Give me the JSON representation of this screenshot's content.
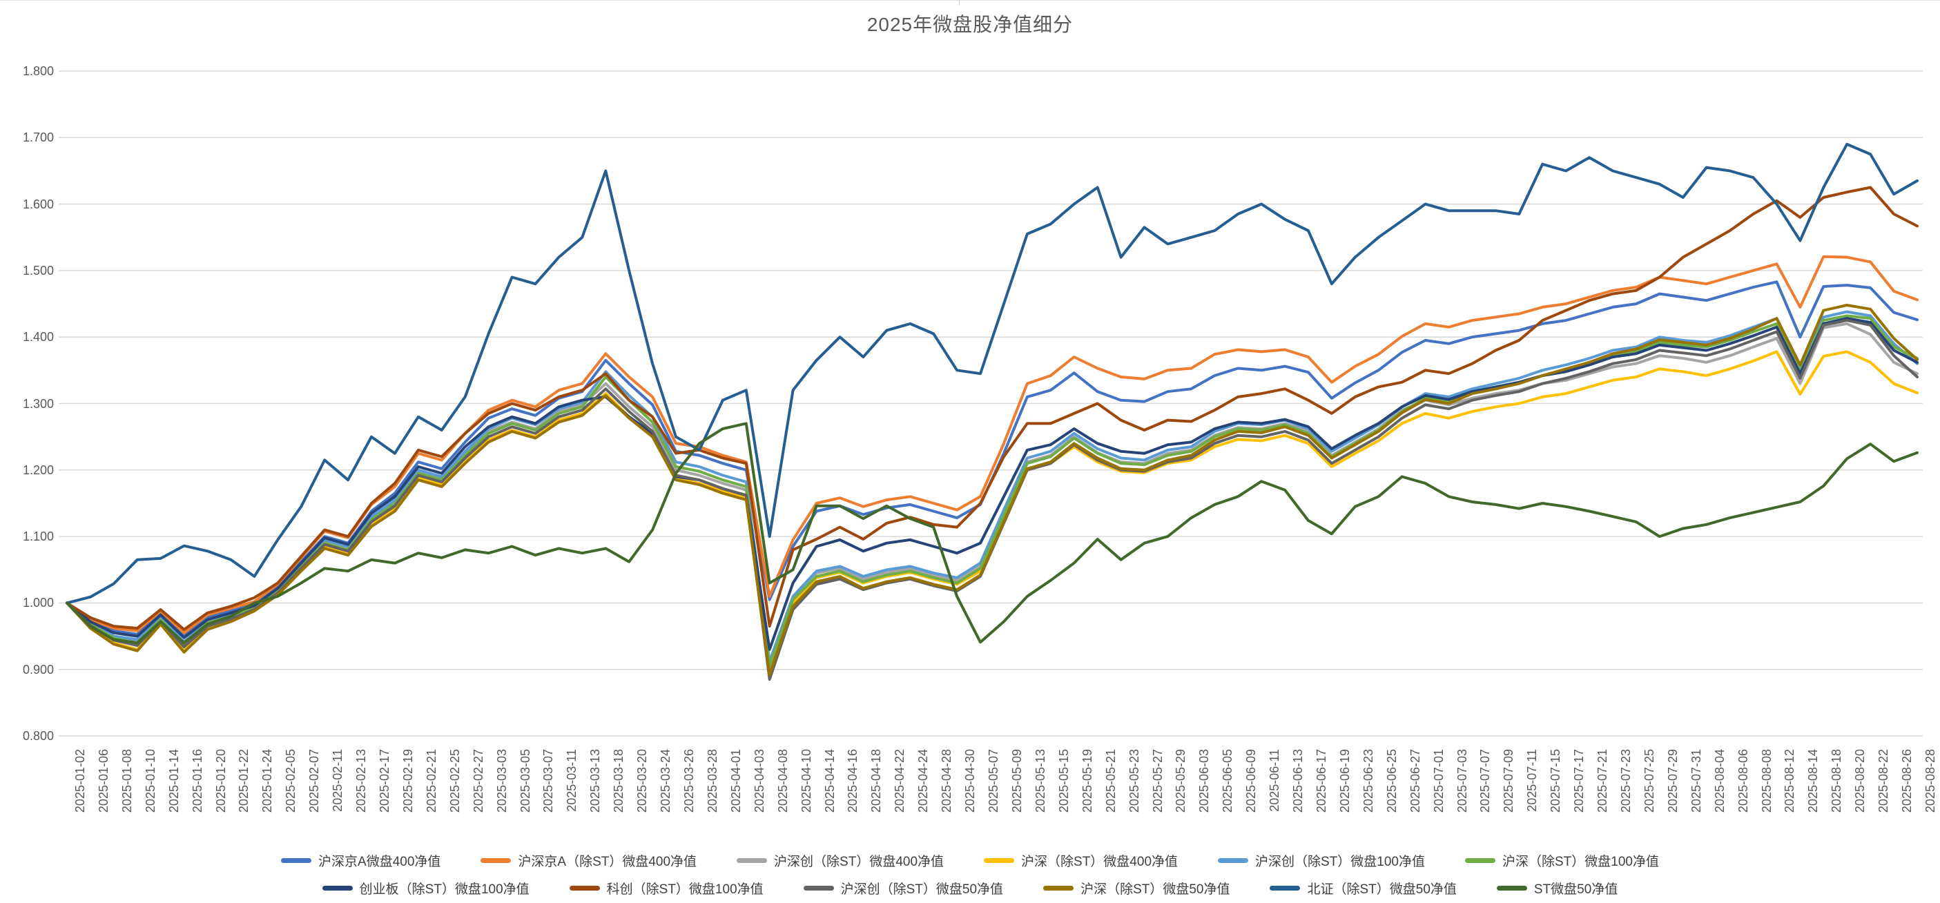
{
  "title": "2025年微盘股净值细分",
  "y_axis": {
    "tick_labels": [
      "1.800",
      "1.700",
      "1.600",
      "1.500",
      "1.400",
      "1.300",
      "1.200",
      "1.100",
      "1.000",
      "0.900",
      "0.800"
    ],
    "min": 0.8,
    "max": 1.8,
    "step": 0.1
  },
  "legend_rows": [
    [
      0,
      1,
      2,
      3,
      4,
      5
    ],
    [
      6,
      7,
      8,
      9,
      10,
      11
    ]
  ],
  "chart_data": {
    "type": "line",
    "title": "2025年微盘股净值细分",
    "xlabel": "",
    "ylabel": "",
    "ylim": [
      0.8,
      1.8
    ],
    "grid": "horizontal",
    "legend_position": "bottom",
    "x": [
      "2025-01-02",
      "2025-01-06",
      "2025-01-08",
      "2025-01-10",
      "2025-01-14",
      "2025-01-16",
      "2025-01-20",
      "2025-01-22",
      "2025-01-24",
      "2025-02-05",
      "2025-02-07",
      "2025-02-11",
      "2025-02-13",
      "2025-02-17",
      "2025-02-19",
      "2025-02-21",
      "2025-02-25",
      "2025-02-27",
      "2025-03-03",
      "2025-03-05",
      "2025-03-07",
      "2025-03-11",
      "2025-03-13",
      "2025-03-18",
      "2025-03-20",
      "2025-03-24",
      "2025-03-26",
      "2025-03-28",
      "2025-04-01",
      "2025-04-03",
      "2025-04-08",
      "2025-04-10",
      "2025-04-14",
      "2025-04-16",
      "2025-04-18",
      "2025-04-22",
      "2025-04-24",
      "2025-04-28",
      "2025-04-30",
      "2025-05-07",
      "2025-05-09",
      "2025-05-13",
      "2025-05-15",
      "2025-05-19",
      "2025-05-21",
      "2025-05-23",
      "2025-05-27",
      "2025-05-29",
      "2025-06-03",
      "2025-06-05",
      "2025-06-09",
      "2025-06-11",
      "2025-06-13",
      "2025-06-17",
      "2025-06-19",
      "2025-06-23",
      "2025-06-25",
      "2025-06-27",
      "2025-07-01",
      "2025-07-03",
      "2025-07-07",
      "2025-07-09",
      "2025-07-11",
      "2025-07-15",
      "2025-07-17",
      "2025-07-21",
      "2025-07-23",
      "2025-07-25",
      "2025-07-29",
      "2025-07-31",
      "2025-08-04",
      "2025-08-06",
      "2025-08-08",
      "2025-08-12",
      "2025-08-14",
      "2025-08-18",
      "2025-08-20",
      "2025-08-22",
      "2025-08-26",
      "2025-08-28"
    ],
    "series": [
      {
        "name": "沪深京A微盘400净值",
        "color": "#4472C4",
        "values": [
          1.0,
          0.973,
          0.958,
          0.953,
          0.984,
          0.95,
          0.978,
          0.988,
          0.998,
          1.024,
          1.062,
          1.1,
          1.09,
          1.138,
          1.165,
          1.212,
          1.202,
          1.242,
          1.278,
          1.292,
          1.282,
          1.308,
          1.318,
          1.365,
          1.33,
          1.298,
          1.228,
          1.222,
          1.21,
          1.2,
          1.005,
          1.085,
          1.138,
          1.146,
          1.133,
          1.143,
          1.148,
          1.138,
          1.128,
          1.148,
          1.225,
          1.31,
          1.32,
          1.346,
          1.318,
          1.305,
          1.303,
          1.318,
          1.322,
          1.342,
          1.353,
          1.35,
          1.356,
          1.347,
          1.308,
          1.331,
          1.35,
          1.377,
          1.395,
          1.39,
          1.4,
          1.405,
          1.41,
          1.42,
          1.425,
          1.435,
          1.445,
          1.45,
          1.465,
          1.46,
          1.455,
          1.465,
          1.475,
          1.483,
          1.4,
          1.476,
          1.478,
          1.474,
          1.437,
          1.426
        ]
      },
      {
        "name": "沪深京A（除ST）微盘400净值",
        "color": "#ED7D31",
        "values": [
          1.0,
          0.975,
          0.962,
          0.958,
          0.988,
          0.955,
          0.982,
          0.992,
          1.002,
          1.028,
          1.068,
          1.108,
          1.098,
          1.148,
          1.175,
          1.225,
          1.215,
          1.255,
          1.29,
          1.305,
          1.295,
          1.32,
          1.33,
          1.375,
          1.34,
          1.31,
          1.24,
          1.235,
          1.222,
          1.212,
          1.01,
          1.095,
          1.15,
          1.158,
          1.145,
          1.155,
          1.16,
          1.15,
          1.14,
          1.16,
          1.24,
          1.33,
          1.342,
          1.37,
          1.353,
          1.34,
          1.337,
          1.35,
          1.353,
          1.374,
          1.381,
          1.378,
          1.381,
          1.37,
          1.332,
          1.356,
          1.374,
          1.401,
          1.42,
          1.415,
          1.425,
          1.43,
          1.435,
          1.445,
          1.45,
          1.46,
          1.47,
          1.475,
          1.49,
          1.485,
          1.48,
          1.49,
          1.5,
          1.51,
          1.445,
          1.521,
          1.52,
          1.513,
          1.469,
          1.456
        ]
      },
      {
        "name": "沪深创（除ST）微盘400净值",
        "color": "#A5A5A5",
        "values": [
          1.0,
          0.97,
          0.95,
          0.944,
          0.978,
          0.94,
          0.97,
          0.98,
          0.993,
          1.018,
          1.056,
          1.092,
          1.082,
          1.128,
          1.152,
          1.198,
          1.188,
          1.225,
          1.258,
          1.272,
          1.262,
          1.288,
          1.298,
          1.33,
          1.295,
          1.265,
          1.2,
          1.192,
          1.18,
          1.17,
          0.91,
          1.008,
          1.045,
          1.052,
          1.036,
          1.046,
          1.052,
          1.042,
          1.034,
          1.055,
          1.135,
          1.212,
          1.222,
          1.25,
          1.226,
          1.212,
          1.21,
          1.225,
          1.23,
          1.252,
          1.264,
          1.262,
          1.27,
          1.258,
          1.222,
          1.242,
          1.262,
          1.29,
          1.305,
          1.298,
          1.308,
          1.315,
          1.32,
          1.33,
          1.335,
          1.345,
          1.355,
          1.36,
          1.372,
          1.368,
          1.362,
          1.372,
          1.385,
          1.398,
          1.33,
          1.414,
          1.42,
          1.404,
          1.362,
          1.345
        ]
      },
      {
        "name": "沪深（除ST）微盘400净值",
        "color": "#FFC000",
        "values": [
          1.0,
          0.964,
          0.94,
          0.93,
          0.97,
          0.928,
          0.962,
          0.974,
          0.99,
          1.014,
          1.05,
          1.085,
          1.075,
          1.118,
          1.142,
          1.188,
          1.178,
          1.212,
          1.245,
          1.26,
          1.25,
          1.275,
          1.285,
          1.315,
          1.28,
          1.252,
          1.188,
          1.18,
          1.168,
          1.158,
          0.9,
          1.0,
          1.038,
          1.046,
          1.03,
          1.04,
          1.046,
          1.036,
          1.028,
          1.048,
          1.125,
          1.2,
          1.21,
          1.235,
          1.212,
          1.198,
          1.196,
          1.21,
          1.215,
          1.235,
          1.246,
          1.244,
          1.252,
          1.24,
          1.205,
          1.225,
          1.244,
          1.27,
          1.285,
          1.278,
          1.288,
          1.295,
          1.3,
          1.31,
          1.315,
          1.325,
          1.335,
          1.34,
          1.352,
          1.348,
          1.342,
          1.352,
          1.364,
          1.378,
          1.314,
          1.371,
          1.378,
          1.362,
          1.33,
          1.316
        ]
      },
      {
        "name": "沪深创（除ST）微盘100净值",
        "color": "#5B9BD5",
        "values": [
          1.0,
          0.97,
          0.95,
          0.945,
          0.978,
          0.942,
          0.972,
          0.982,
          0.995,
          1.02,
          1.058,
          1.095,
          1.085,
          1.13,
          1.155,
          1.2,
          1.19,
          1.228,
          1.262,
          1.278,
          1.268,
          1.292,
          1.302,
          1.348,
          1.312,
          1.28,
          1.212,
          1.205,
          1.192,
          1.182,
          0.912,
          1.01,
          1.048,
          1.055,
          1.04,
          1.05,
          1.055,
          1.045,
          1.038,
          1.06,
          1.14,
          1.218,
          1.228,
          1.255,
          1.232,
          1.218,
          1.215,
          1.23,
          1.235,
          1.258,
          1.27,
          1.268,
          1.275,
          1.262,
          1.228,
          1.248,
          1.268,
          1.295,
          1.315,
          1.31,
          1.322,
          1.33,
          1.338,
          1.35,
          1.358,
          1.368,
          1.38,
          1.385,
          1.4,
          1.395,
          1.392,
          1.402,
          1.415,
          1.428,
          1.355,
          1.43,
          1.438,
          1.432,
          1.39,
          1.36
        ]
      },
      {
        "name": "沪深（除ST）微盘100净值",
        "color": "#70AD47",
        "values": [
          1.0,
          0.968,
          0.947,
          0.94,
          0.975,
          0.938,
          0.97,
          0.98,
          0.992,
          1.018,
          1.055,
          1.09,
          1.08,
          1.125,
          1.15,
          1.195,
          1.185,
          1.222,
          1.255,
          1.27,
          1.26,
          1.285,
          1.295,
          1.34,
          1.305,
          1.272,
          1.205,
          1.198,
          1.185,
          1.175,
          0.905,
          1.005,
          1.04,
          1.048,
          1.032,
          1.042,
          1.048,
          1.038,
          1.03,
          1.052,
          1.132,
          1.21,
          1.22,
          1.248,
          1.225,
          1.21,
          1.208,
          1.222,
          1.228,
          1.25,
          1.262,
          1.26,
          1.268,
          1.255,
          1.22,
          1.24,
          1.26,
          1.288,
          1.308,
          1.302,
          1.315,
          1.322,
          1.33,
          1.342,
          1.35,
          1.36,
          1.372,
          1.378,
          1.392,
          1.388,
          1.385,
          1.395,
          1.408,
          1.42,
          1.348,
          1.425,
          1.432,
          1.428,
          1.385,
          1.368
        ]
      },
      {
        "name": "创业板（除ST）微盘100净值",
        "color": "#264478",
        "values": [
          1.0,
          0.972,
          0.955,
          0.95,
          0.982,
          0.948,
          0.975,
          0.985,
          0.996,
          1.022,
          1.06,
          1.098,
          1.088,
          1.135,
          1.16,
          1.205,
          1.195,
          1.235,
          1.265,
          1.28,
          1.27,
          1.295,
          1.305,
          1.31,
          1.28,
          1.255,
          1.19,
          1.185,
          1.172,
          1.162,
          0.93,
          1.03,
          1.085,
          1.095,
          1.078,
          1.09,
          1.095,
          1.085,
          1.075,
          1.09,
          1.16,
          1.23,
          1.238,
          1.262,
          1.24,
          1.228,
          1.225,
          1.238,
          1.242,
          1.262,
          1.272,
          1.27,
          1.276,
          1.265,
          1.232,
          1.252,
          1.27,
          1.295,
          1.312,
          1.306,
          1.318,
          1.325,
          1.332,
          1.342,
          1.348,
          1.358,
          1.37,
          1.375,
          1.388,
          1.384,
          1.38,
          1.39,
          1.402,
          1.415,
          1.345,
          1.42,
          1.428,
          1.422,
          1.38,
          1.362
        ]
      },
      {
        "name": "科创（除ST）微盘100净值",
        "color": "#9E480E",
        "values": [
          1.0,
          0.978,
          0.965,
          0.962,
          0.99,
          0.96,
          0.985,
          0.995,
          1.008,
          1.03,
          1.07,
          1.11,
          1.1,
          1.15,
          1.18,
          1.23,
          1.22,
          1.255,
          1.285,
          1.3,
          1.29,
          1.31,
          1.32,
          1.345,
          1.305,
          1.28,
          1.225,
          1.23,
          1.218,
          1.21,
          0.965,
          1.08,
          1.096,
          1.114,
          1.096,
          1.12,
          1.129,
          1.118,
          1.114,
          1.15,
          1.22,
          1.27,
          1.27,
          1.285,
          1.3,
          1.275,
          1.26,
          1.275,
          1.273,
          1.29,
          1.31,
          1.315,
          1.322,
          1.305,
          1.285,
          1.31,
          1.325,
          1.332,
          1.35,
          1.345,
          1.36,
          1.38,
          1.395,
          1.425,
          1.44,
          1.455,
          1.465,
          1.47,
          1.49,
          1.52,
          1.54,
          1.56,
          1.585,
          1.605,
          1.58,
          1.61,
          1.618,
          1.625,
          1.585,
          1.567
        ]
      },
      {
        "name": "沪深创（除ST）微盘50净值",
        "color": "#636363",
        "values": [
          1.0,
          0.966,
          0.944,
          0.936,
          0.972,
          0.934,
          0.965,
          0.976,
          0.99,
          1.015,
          1.052,
          1.088,
          1.078,
          1.122,
          1.146,
          1.192,
          1.182,
          1.218,
          1.25,
          1.265,
          1.255,
          1.28,
          1.29,
          1.322,
          1.288,
          1.258,
          1.192,
          1.185,
          1.172,
          1.162,
          0.885,
          0.99,
          1.028,
          1.036,
          1.02,
          1.03,
          1.036,
          1.026,
          1.018,
          1.04,
          1.12,
          1.2,
          1.21,
          1.238,
          1.215,
          1.2,
          1.198,
          1.212,
          1.218,
          1.24,
          1.252,
          1.25,
          1.258,
          1.245,
          1.21,
          1.23,
          1.25,
          1.278,
          1.298,
          1.292,
          1.305,
          1.312,
          1.318,
          1.33,
          1.338,
          1.348,
          1.36,
          1.366,
          1.38,
          1.376,
          1.372,
          1.382,
          1.395,
          1.408,
          1.338,
          1.418,
          1.425,
          1.418,
          1.372,
          1.34
        ]
      },
      {
        "name": "沪深（除ST）微盘50净值",
        "color": "#997300",
        "values": [
          1.0,
          0.962,
          0.938,
          0.928,
          0.968,
          0.926,
          0.96,
          0.972,
          0.988,
          1.012,
          1.048,
          1.082,
          1.072,
          1.115,
          1.138,
          1.185,
          1.175,
          1.21,
          1.242,
          1.258,
          1.248,
          1.272,
          1.282,
          1.312,
          1.278,
          1.25,
          1.185,
          1.178,
          1.165,
          1.155,
          0.892,
          0.995,
          1.032,
          1.04,
          1.022,
          1.032,
          1.038,
          1.028,
          1.02,
          1.042,
          1.122,
          1.202,
          1.212,
          1.24,
          1.218,
          1.202,
          1.2,
          1.215,
          1.222,
          1.245,
          1.258,
          1.256,
          1.265,
          1.252,
          1.218,
          1.238,
          1.258,
          1.286,
          1.306,
          1.3,
          1.315,
          1.322,
          1.33,
          1.342,
          1.352,
          1.362,
          1.375,
          1.382,
          1.396,
          1.392,
          1.388,
          1.398,
          1.412,
          1.428,
          1.358,
          1.44,
          1.448,
          1.442,
          1.398,
          1.366
        ]
      },
      {
        "name": "北证（除ST）微盘50净值",
        "color": "#255E91",
        "values": [
          1.0,
          1.009,
          1.029,
          1.065,
          1.067,
          1.086,
          1.078,
          1.065,
          1.04,
          1.095,
          1.145,
          1.215,
          1.185,
          1.25,
          1.225,
          1.28,
          1.26,
          1.31,
          1.405,
          1.49,
          1.48,
          1.52,
          1.55,
          1.65,
          1.5,
          1.36,
          1.25,
          1.23,
          1.305,
          1.32,
          1.1,
          1.32,
          1.365,
          1.4,
          1.37,
          1.41,
          1.42,
          1.405,
          1.35,
          1.345,
          1.45,
          1.555,
          1.57,
          1.6,
          1.625,
          1.52,
          1.565,
          1.54,
          1.55,
          1.56,
          1.585,
          1.6,
          1.577,
          1.56,
          1.48,
          1.52,
          1.55,
          1.575,
          1.6,
          1.59,
          1.59,
          1.59,
          1.585,
          1.66,
          1.65,
          1.67,
          1.65,
          1.64,
          1.63,
          1.61,
          1.655,
          1.65,
          1.64,
          1.6,
          1.545,
          1.625,
          1.69,
          1.675,
          1.615,
          1.635
        ]
      },
      {
        "name": "ST微盘50净值",
        "color": "#43682B",
        "values": [
          1.0,
          0.965,
          0.945,
          0.94,
          0.972,
          0.94,
          0.968,
          0.98,
          1.0,
          1.01,
          1.03,
          1.052,
          1.048,
          1.065,
          1.06,
          1.075,
          1.068,
          1.08,
          1.075,
          1.085,
          1.072,
          1.082,
          1.075,
          1.082,
          1.062,
          1.11,
          1.195,
          1.24,
          1.262,
          1.27,
          1.03,
          1.05,
          1.146,
          1.146,
          1.127,
          1.146,
          1.127,
          1.114,
          1.01,
          0.941,
          0.972,
          1.01,
          1.034,
          1.06,
          1.096,
          1.065,
          1.09,
          1.1,
          1.128,
          1.148,
          1.16,
          1.183,
          1.17,
          1.124,
          1.104,
          1.145,
          1.16,
          1.19,
          1.18,
          1.16,
          1.152,
          1.148,
          1.142,
          1.15,
          1.145,
          1.138,
          1.13,
          1.122,
          1.1,
          1.112,
          1.118,
          1.128,
          1.136,
          1.144,
          1.152,
          1.176,
          1.217,
          1.239,
          1.213,
          1.226
        ]
      }
    ]
  }
}
